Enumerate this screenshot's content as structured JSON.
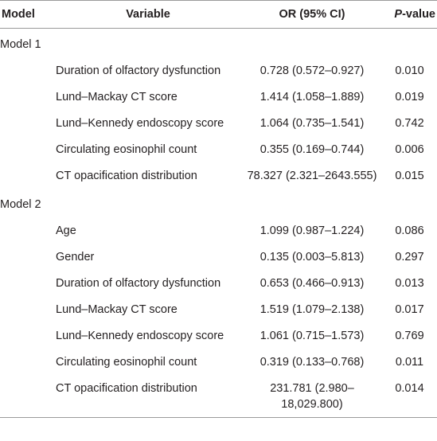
{
  "table": {
    "header": [
      "Model",
      "Variable",
      "OR (95% CI)",
      "P-value"
    ],
    "groups": [
      {
        "label": "Model 1",
        "rows": [
          [
            "Duration of olfactory dysfunction",
            "0.728 (0.572–0.927)",
            "0.010"
          ],
          [
            "Lund–Mackay CT score",
            "1.414 (1.058–1.889)",
            "0.019"
          ],
          [
            "Lund–Kennedy endoscopy score",
            "1.064 (0.735–1.541)",
            "0.742"
          ],
          [
            "Circulating eosinophil count",
            "0.355 (0.169–0.744)",
            "0.006"
          ],
          [
            "CT opacification distribution",
            "78.327 (2.321–2643.555)",
            "0.015"
          ]
        ]
      },
      {
        "label": "Model 2",
        "rows": [
          [
            "Age",
            "1.099 (0.987–1.224)",
            "0.086"
          ],
          [
            "Gender",
            "0.135 (0.003–5.813)",
            "0.297"
          ],
          [
            "Duration of olfactory dysfunction",
            "0.653 (0.466–0.913)",
            "0.013"
          ],
          [
            "Lund–Mackay CT score",
            "1.519 (1.079–2.138)",
            "0.017"
          ],
          [
            "Lund–Kennedy endoscopy score",
            "1.061 (0.715–1.573)",
            "0.769"
          ],
          [
            "Circulating eosinophil count",
            "0.319 (0.133–0.768)",
            "0.011"
          ],
          [
            "CT opacification distribution",
            "231.781 (2.980–18,029.800)",
            "0.014"
          ]
        ]
      }
    ]
  }
}
